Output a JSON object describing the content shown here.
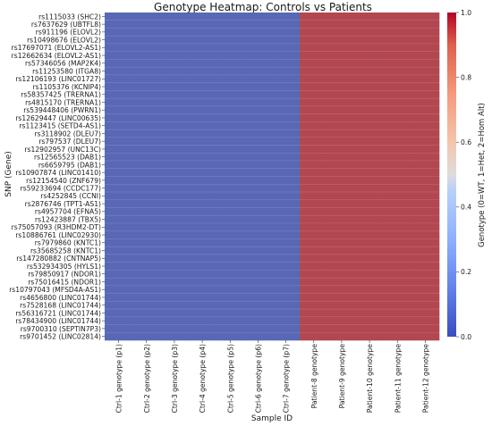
{
  "chart_data": {
    "type": "heatmap",
    "title": "Genotype Heatmap: Controls vs Patients",
    "xlabel": "Sample ID",
    "ylabel": "SNP (Gene)",
    "x_categories": [
      "Ctrl-1 genotype (p1)",
      "Ctrl-2 genotype (p2)",
      "Ctrl-3 genotype (p3)",
      "Ctrl-4 genotype (p4)",
      "Ctrl-5 genotype (p5)",
      "Ctrl-6 genotype (p6)",
      "Ctrl-7 genotype (p7)",
      "Patient-8 genotype",
      "Patient-9 genotype",
      "Patient-10 genotype",
      "Patient-11 genotype",
      "Patient-12 genotype"
    ],
    "y_categories": [
      "rs1115033 (SHC2)",
      "rs7637629 (UBTFL8)",
      "rs911196 (ELOVL2)",
      "rs10498676 (ELOVL2)",
      "rs17697071 (ELOVL2-AS1)",
      "rs12662634 (ELOVL2-AS1)",
      "rs57346056 (MAP2K4)",
      "rs11253580 (ITGA8)",
      "rs12106193 (LINC01727)",
      "rs1105376 (KCNIP4)",
      "rs58357425 (TRERNA1)",
      "rs4815170 (TRERNA1)",
      "rs539448406 (PWRN1)",
      "rs12629447 (LINC00635)",
      "rs1123415 (SETD4-AS1)",
      "rs3118902 (DLEU7)",
      "rs797537 (DLEU7)",
      "rs12902957 (UNC13C)",
      "rs12565523 (DAB1)",
      "rs6659795 (DAB1)",
      "rs10907874 (LINC01410)",
      "rs12154540 (ZNF679)",
      "rs59233694 (CCDC177)",
      "rs4252845 (CCNI)",
      "rs2876746 (TPT1-AS1)",
      "rs4957704 (EFNA5)",
      "rs12423887 (TBX5)",
      "rs75057093 (R3HDM2-DT)",
      "rs10886761 (LINC02930)",
      "rs7979860 (KNTC1)",
      "rs35685258 (KNTC1)",
      "rs147280882 (CNTNAP5)",
      "rs532934305 (HYLS1)",
      "rs79850917 (NDOR1)",
      "rs75016415 (NDOR1)",
      "rs10797043 (MFSD4A-AS1)",
      "rs4656800 (LINC01744)",
      "rs7528168 (LINC01744)",
      "rs56316721 (LINC01744)",
      "rs78434900 (LINC01744)",
      "rs9700310 (SEPTIN7P3)",
      "rs9701452 (LINC02814)"
    ],
    "column_values": [
      0,
      0,
      0,
      0,
      0,
      0,
      0,
      1,
      1,
      1,
      1,
      1
    ],
    "colorbar": {
      "label": "Genotype (0=WT, 1=Het, 2=Hom Alt)",
      "ticks": [
        "0.0",
        "0.2",
        "0.4",
        "0.6",
        "0.8",
        "1.0"
      ],
      "range": [
        0,
        1
      ]
    },
    "colors": {
      "low": "#3a4cc0",
      "high": "#b40426",
      "cell_low": "#5868b4",
      "cell_high": "#b24750"
    }
  }
}
